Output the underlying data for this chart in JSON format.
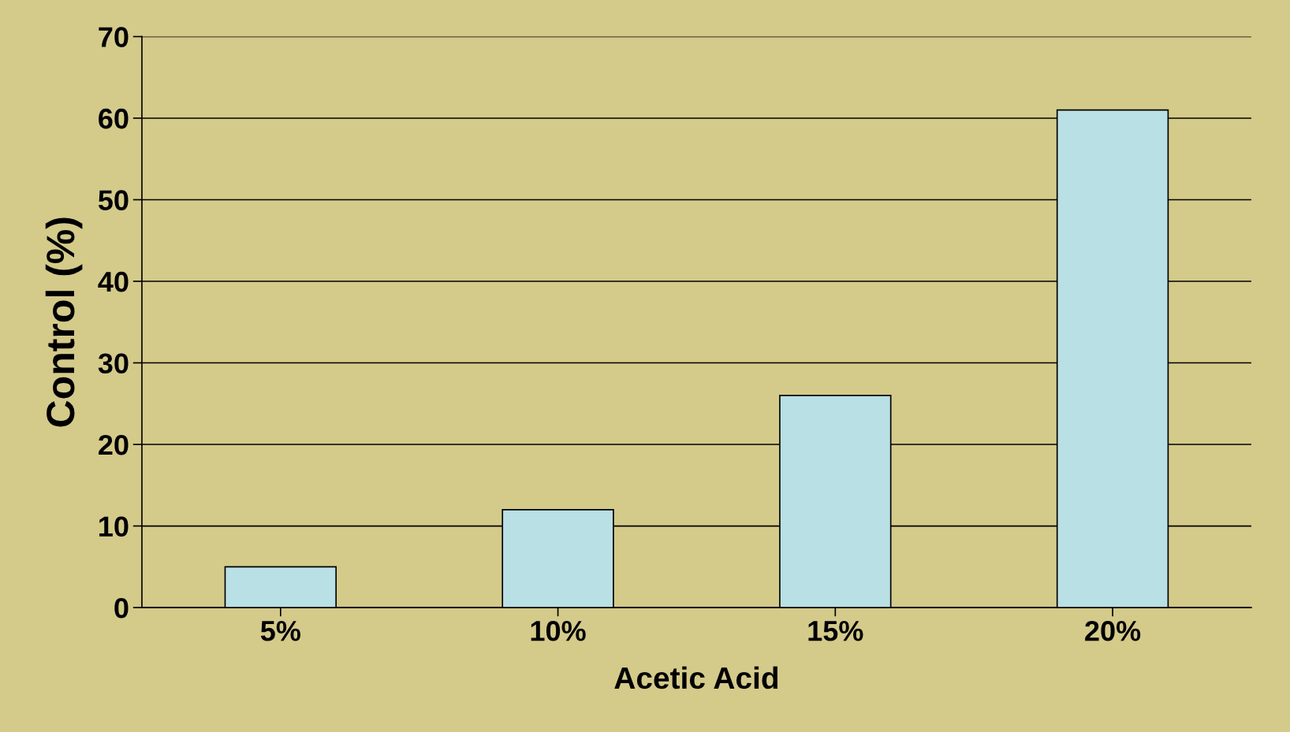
{
  "chart_data": {
    "type": "bar",
    "xlabel": "Acetic Acid",
    "ylabel": "Control (%)",
    "categories": [
      "5%",
      "10%",
      "15%",
      "20%"
    ],
    "values": [
      5,
      12,
      26,
      61
    ],
    "color": "#b9e0e5",
    "ylim": [
      0,
      70
    ],
    "yticks": [
      0,
      10,
      20,
      30,
      40,
      50,
      60,
      70
    ],
    "grid": "y"
  }
}
